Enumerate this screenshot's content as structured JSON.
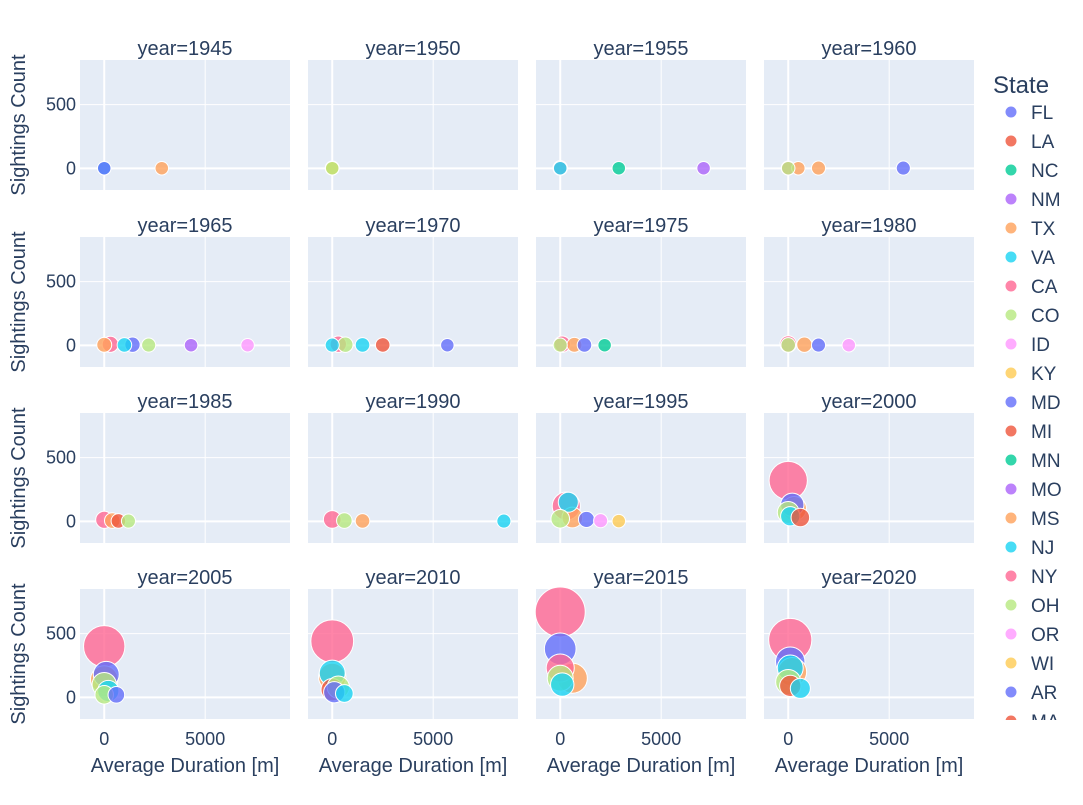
{
  "chart_data": {
    "type": "scatter",
    "subtype": "bubble",
    "x_label": "Average Duration [m]",
    "y_label": "Sightings Count",
    "facet_title_template": "year={value}",
    "x_ticks": [
      0,
      5000
    ],
    "y_ticks": [
      0,
      500
    ],
    "xlim": [
      -1200,
      9200
    ],
    "ylim": [
      -170,
      850
    ],
    "grid": true,
    "legend": {
      "title": "State",
      "placement": "right"
    },
    "colors": {
      "FL": "#636efa",
      "LA": "#EF553B",
      "NC": "#00cc96",
      "NM": "#ab63fa",
      "TX": "#FFA15A",
      "VA": "#19d3f3",
      "CA": "#FF6692",
      "CO": "#B6E880",
      "ID": "#FF97FF",
      "KY": "#FECB52",
      "MD": "#636efa",
      "MI": "#EF553B",
      "MN": "#00cc96",
      "MO": "#ab63fa",
      "MS": "#FFA15A",
      "NJ": "#19d3f3",
      "NY": "#FF6692",
      "OH": "#B6E880",
      "OR": "#FF97FF",
      "WI": "#FECB52",
      "AR": "#636efa",
      "MA": "#EF553B"
    },
    "legend_entries": [
      "FL",
      "LA",
      "NC",
      "NM",
      "TX",
      "VA",
      "CA",
      "CO",
      "ID",
      "KY",
      "MD",
      "MI",
      "MN",
      "MO",
      "MS",
      "NJ",
      "NY",
      "OH",
      "OR",
      "WI",
      "AR",
      "MA"
    ],
    "facets": [
      {
        "year": "1945",
        "points": [
          {
            "state": "VA",
            "x": 0,
            "y": 1,
            "size": 1
          },
          {
            "state": "FL",
            "x": 0,
            "y": 1,
            "size": 1
          },
          {
            "state": "TX",
            "x": 2850,
            "y": 1,
            "size": 1
          }
        ]
      },
      {
        "year": "1950",
        "points": [
          {
            "state": "CA",
            "x": 0,
            "y": 2,
            "size": 2
          },
          {
            "state": "TX",
            "x": 0,
            "y": 1,
            "size": 1
          },
          {
            "state": "KY",
            "x": 0,
            "y": 1,
            "size": 1
          },
          {
            "state": "CO",
            "x": 0,
            "y": 1,
            "size": 1
          }
        ]
      },
      {
        "year": "1955",
        "points": [
          {
            "state": "CA",
            "x": 0,
            "y": 3,
            "size": 3
          },
          {
            "state": "VA",
            "x": 0,
            "y": 1,
            "size": 1
          },
          {
            "state": "NC",
            "x": 2900,
            "y": 1,
            "size": 1
          },
          {
            "state": "NM",
            "x": 7100,
            "y": 1,
            "size": 1
          }
        ]
      },
      {
        "year": "1960",
        "points": [
          {
            "state": "NY",
            "x": 0,
            "y": 2,
            "size": 2
          },
          {
            "state": "TX",
            "x": 1500,
            "y": 2,
            "size": 2
          },
          {
            "state": "MS",
            "x": 500,
            "y": 1,
            "size": 1
          },
          {
            "state": "FL",
            "x": 5700,
            "y": 2,
            "size": 2
          },
          {
            "state": "CO",
            "x": 0,
            "y": 1,
            "size": 1
          }
        ]
      },
      {
        "year": "1965",
        "points": [
          {
            "state": "CA",
            "x": 300,
            "y": 8,
            "size": 8
          },
          {
            "state": "TX",
            "x": 0,
            "y": 4,
            "size": 4
          },
          {
            "state": "FL",
            "x": 1400,
            "y": 5,
            "size": 5
          },
          {
            "state": "VA",
            "x": 1000,
            "y": 3,
            "size": 3
          },
          {
            "state": "CO",
            "x": 2200,
            "y": 2,
            "size": 2
          },
          {
            "state": "NM",
            "x": 4300,
            "y": 1,
            "size": 1
          },
          {
            "state": "ID",
            "x": 7100,
            "y": 1,
            "size": 1
          }
        ]
      },
      {
        "year": "1970",
        "points": [
          {
            "state": "CA",
            "x": 300,
            "y": 9,
            "size": 9
          },
          {
            "state": "CO",
            "x": 650,
            "y": 5,
            "size": 5
          },
          {
            "state": "VA",
            "x": 1500,
            "y": 3,
            "size": 3
          },
          {
            "state": "LA",
            "x": 2500,
            "y": 3,
            "size": 3
          },
          {
            "state": "FL",
            "x": 5700,
            "y": 1,
            "size": 1
          },
          {
            "state": "NJ",
            "x": 0,
            "y": 2,
            "size": 2
          }
        ]
      },
      {
        "year": "1975",
        "points": [
          {
            "state": "CA",
            "x": 100,
            "y": 9,
            "size": 9
          },
          {
            "state": "TX",
            "x": 700,
            "y": 4,
            "size": 4
          },
          {
            "state": "FL",
            "x": 1200,
            "y": 3,
            "size": 3
          },
          {
            "state": "CO",
            "x": 0,
            "y": 2,
            "size": 2
          },
          {
            "state": "NC",
            "x": 2200,
            "y": 1,
            "size": 1
          }
        ]
      },
      {
        "year": "1980",
        "points": [
          {
            "state": "CA",
            "x": 0,
            "y": 10,
            "size": 10
          },
          {
            "state": "TX",
            "x": 800,
            "y": 5,
            "size": 5
          },
          {
            "state": "FL",
            "x": 1500,
            "y": 2,
            "size": 2
          },
          {
            "state": "CO",
            "x": 0,
            "y": 3,
            "size": 3
          },
          {
            "state": "ID",
            "x": 3000,
            "y": 1,
            "size": 1
          }
        ]
      },
      {
        "year": "1985",
        "points": [
          {
            "state": "CA",
            "x": 0,
            "y": 12,
            "size": 12
          },
          {
            "state": "TX",
            "x": 400,
            "y": 6,
            "size": 6
          },
          {
            "state": "LA",
            "x": 700,
            "y": 3,
            "size": 3
          },
          {
            "state": "CO",
            "x": 1200,
            "y": 2,
            "size": 2
          }
        ]
      },
      {
        "year": "1990",
        "points": [
          {
            "state": "CA",
            "x": 0,
            "y": 15,
            "size": 15
          },
          {
            "state": "CO",
            "x": 600,
            "y": 6,
            "size": 6
          },
          {
            "state": "TX",
            "x": 1500,
            "y": 3,
            "size": 3
          },
          {
            "state": "VA",
            "x": 8500,
            "y": 2,
            "size": 2
          }
        ]
      },
      {
        "year": "1995",
        "points": [
          {
            "state": "CA",
            "x": 300,
            "y": 120,
            "size": 120
          },
          {
            "state": "VA",
            "x": 400,
            "y": 150,
            "size": 30
          },
          {
            "state": "TX",
            "x": 600,
            "y": 30,
            "size": 35
          },
          {
            "state": "CO",
            "x": 0,
            "y": 20,
            "size": 20
          },
          {
            "state": "FL",
            "x": 1300,
            "y": 15,
            "size": 8
          },
          {
            "state": "ID",
            "x": 2000,
            "y": 5,
            "size": 2
          },
          {
            "state": "KY",
            "x": 2900,
            "y": 2,
            "size": 1
          }
        ]
      },
      {
        "year": "2000",
        "points": [
          {
            "state": "CA",
            "x": 0,
            "y": 320,
            "size": 320
          },
          {
            "state": "FL",
            "x": 200,
            "y": 130,
            "size": 60
          },
          {
            "state": "TX",
            "x": 300,
            "y": 100,
            "size": 70
          },
          {
            "state": "CO",
            "x": 0,
            "y": 70,
            "size": 45
          },
          {
            "state": "LA",
            "x": 600,
            "y": 30,
            "size": 20
          },
          {
            "state": "VA",
            "x": 100,
            "y": 40,
            "size": 25
          }
        ]
      },
      {
        "year": "2005",
        "points": [
          {
            "state": "CA",
            "x": 0,
            "y": 400,
            "size": 400
          },
          {
            "state": "FL",
            "x": 100,
            "y": 180,
            "size": 90
          },
          {
            "state": "TX",
            "x": 0,
            "y": 140,
            "size": 110
          },
          {
            "state": "CO",
            "x": 0,
            "y": 100,
            "size": 70
          },
          {
            "state": "VA",
            "x": 200,
            "y": 50,
            "size": 40
          },
          {
            "state": "MD",
            "x": 600,
            "y": 20,
            "size": 10
          },
          {
            "state": "OH",
            "x": 0,
            "y": 20,
            "size": 20
          }
        ]
      },
      {
        "year": "2010",
        "points": [
          {
            "state": "CA",
            "x": 0,
            "y": 440,
            "size": 440
          },
          {
            "state": "VA",
            "x": 0,
            "y": 190,
            "size": 90
          },
          {
            "state": "TX",
            "x": 0,
            "y": 160,
            "size": 110
          },
          {
            "state": "LA",
            "x": 0,
            "y": 60,
            "size": 50
          },
          {
            "state": "FL",
            "x": 100,
            "y": 40,
            "size": 40
          },
          {
            "state": "CO",
            "x": 300,
            "y": 80,
            "size": 50
          },
          {
            "state": "NJ",
            "x": 600,
            "y": 30,
            "size": 15
          }
        ]
      },
      {
        "year": "2015",
        "points": [
          {
            "state": "CA",
            "x": 0,
            "y": 670,
            "size": 670
          },
          {
            "state": "FL",
            "x": 0,
            "y": 380,
            "size": 180
          },
          {
            "state": "NY",
            "x": 0,
            "y": 230,
            "size": 120
          },
          {
            "state": "TX",
            "x": 600,
            "y": 150,
            "size": 150
          },
          {
            "state": "CO",
            "x": 0,
            "y": 150,
            "size": 90
          },
          {
            "state": "VA",
            "x": 100,
            "y": 100,
            "size": 60
          }
        ]
      },
      {
        "year": "2020",
        "points": [
          {
            "state": "CA",
            "x": 100,
            "y": 450,
            "size": 450
          },
          {
            "state": "FL",
            "x": 100,
            "y": 280,
            "size": 140
          },
          {
            "state": "VA",
            "x": 100,
            "y": 230,
            "size": 90
          },
          {
            "state": "TX",
            "x": 200,
            "y": 200,
            "size": 130
          },
          {
            "state": "CO",
            "x": 0,
            "y": 120,
            "size": 80
          },
          {
            "state": "LA",
            "x": 100,
            "y": 90,
            "size": 40
          },
          {
            "state": "NJ",
            "x": 600,
            "y": 70,
            "size": 30
          }
        ]
      }
    ]
  }
}
